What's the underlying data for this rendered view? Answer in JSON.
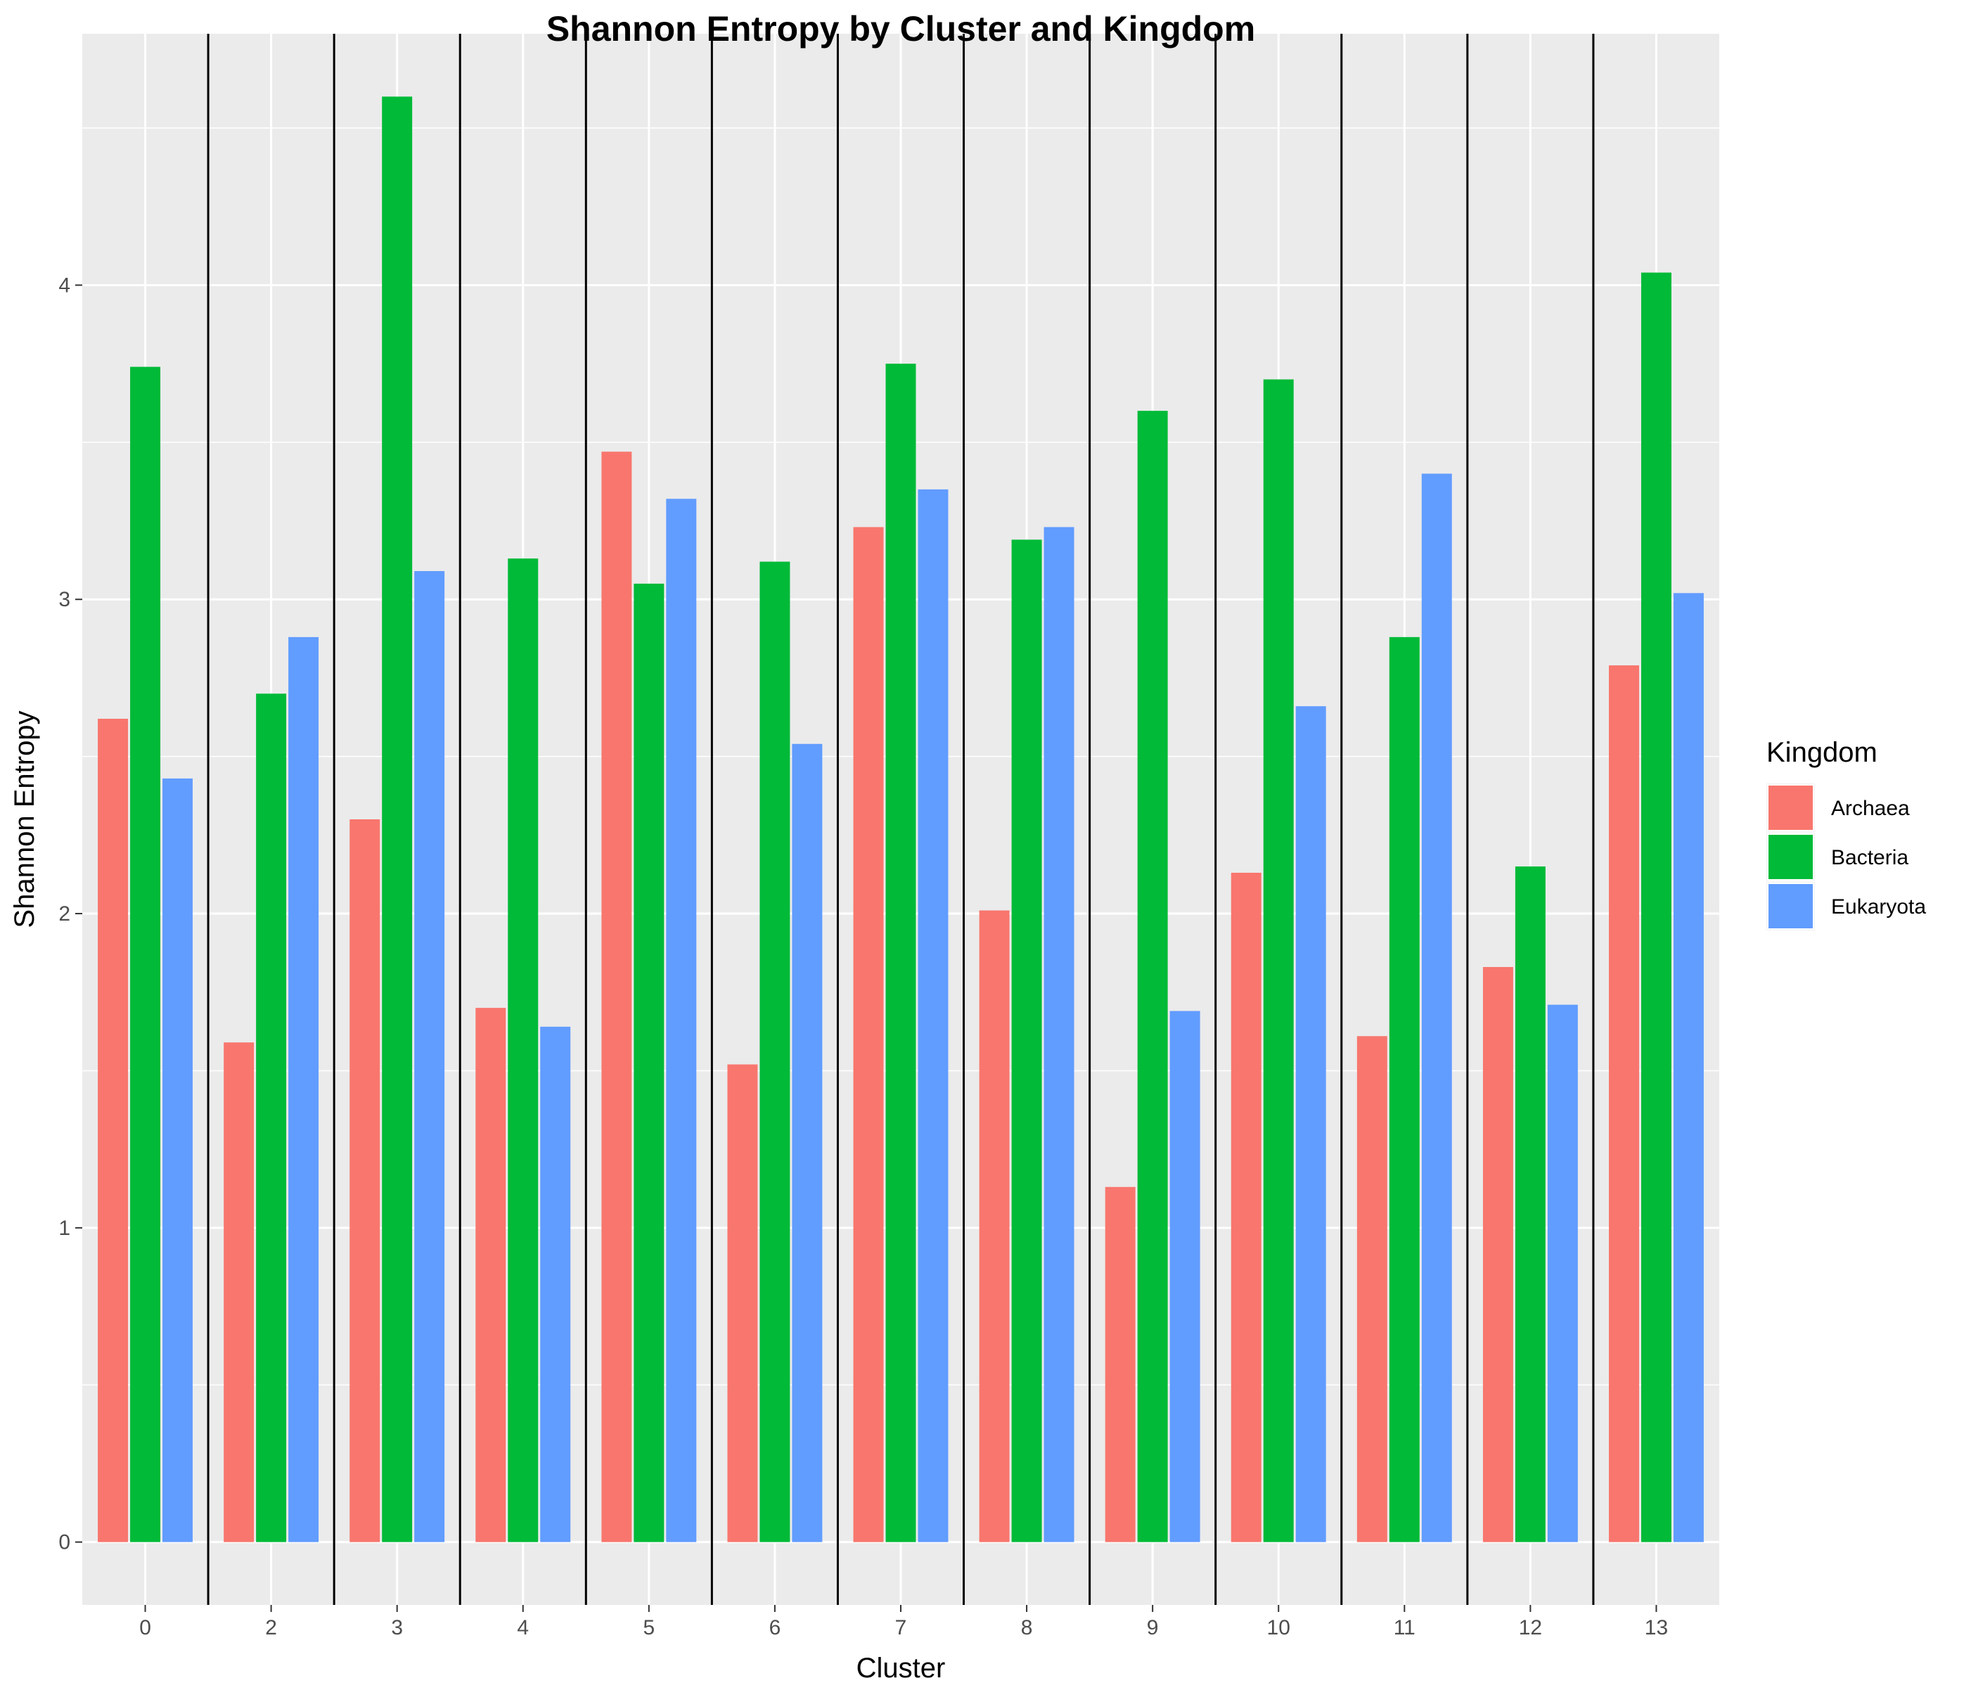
{
  "chart_data": {
    "type": "bar",
    "title": "Shannon Entropy by Cluster and Kingdom",
    "xlabel": "Cluster",
    "ylabel": "Shannon Entropy",
    "categories": [
      "0",
      "2",
      "3",
      "4",
      "5",
      "6",
      "7",
      "8",
      "9",
      "10",
      "11",
      "12",
      "13"
    ],
    "series": [
      {
        "name": "Archaea",
        "color": "#F8766D",
        "values": [
          2.62,
          1.59,
          2.3,
          1.7,
          3.47,
          1.52,
          3.23,
          2.01,
          1.13,
          2.13,
          1.61,
          1.83,
          2.79
        ]
      },
      {
        "name": "Bacteria",
        "color": "#00BA38",
        "values": [
          3.74,
          2.7,
          4.6,
          3.13,
          3.05,
          3.12,
          3.75,
          3.19,
          3.6,
          3.7,
          2.88,
          2.15,
          4.04
        ]
      },
      {
        "name": "Eukaryota",
        "color": "#619CFF",
        "values": [
          2.43,
          2.88,
          3.09,
          1.64,
          3.32,
          2.54,
          3.35,
          3.23,
          1.69,
          2.66,
          3.4,
          1.71,
          3.02
        ]
      }
    ],
    "ylim": [
      -0.2,
      4.8
    ],
    "yticks": [
      0,
      1,
      2,
      3,
      4
    ],
    "legend": {
      "title": "Kingdom",
      "position": "right"
    },
    "grid": true,
    "cluster_separators": true
  }
}
